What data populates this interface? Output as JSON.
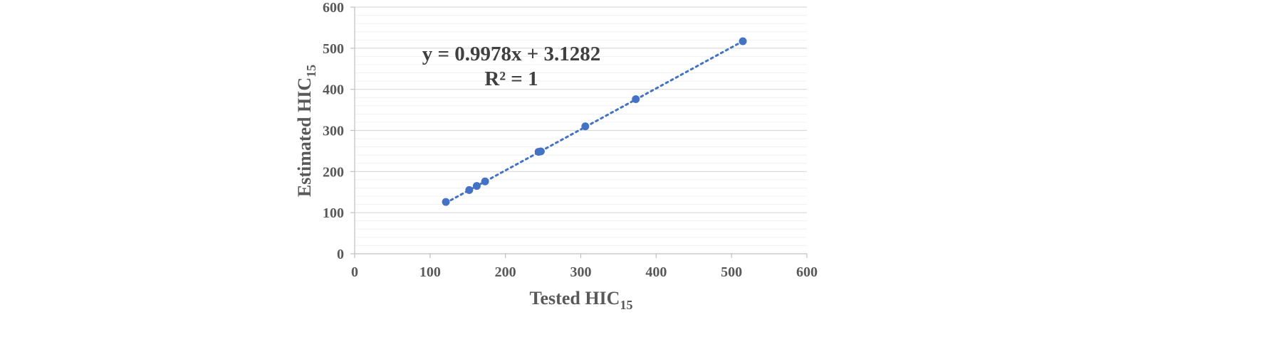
{
  "chart_data": {
    "type": "scatter",
    "xlabel": "Tested HIC",
    "xlabel_sub": "15",
    "ylabel": "Estimated HIC",
    "ylabel_sub": "15",
    "xlim": [
      0,
      600
    ],
    "ylim": [
      0,
      600
    ],
    "major_step": 100,
    "minor_step": 20,
    "grid": true,
    "point_color": "#4472C4",
    "trendline_color": "#4472C4",
    "series": [
      {
        "points": [
          [
            121,
            126
          ],
          [
            152,
            155
          ],
          [
            162,
            165
          ],
          [
            173,
            176
          ],
          [
            244,
            248
          ],
          [
            247,
            249
          ],
          [
            306,
            310
          ],
          [
            373,
            376
          ],
          [
            515,
            517
          ]
        ]
      }
    ],
    "trendline": {
      "type": "linear",
      "slope": 0.9978,
      "intercept": 3.1282,
      "x_range": [
        121,
        515
      ],
      "style": "dotted"
    },
    "annotations": {
      "equation": "y = 0.9978x + 3.1282",
      "r_squared": "R² = 1"
    },
    "x_ticks": [
      "0",
      "100",
      "200",
      "300",
      "400",
      "500",
      "600"
    ],
    "y_ticks": [
      "0",
      "100",
      "200",
      "300",
      "400",
      "500",
      "600"
    ]
  }
}
